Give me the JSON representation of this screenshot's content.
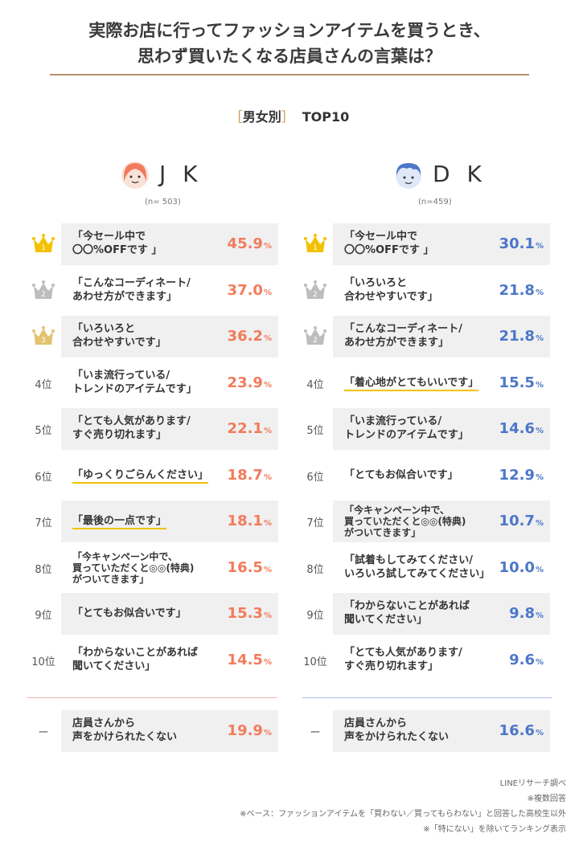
{
  "title": {
    "line1": "実際お店に行ってファッションアイテムを買うとき、",
    "line2": "思わず買いたくなる店員さんの言葉は？"
  },
  "subtitle": {
    "open": "［",
    "text": "男女別",
    "close": "］",
    "top": "TOP10"
  },
  "colors": {
    "jk": "#f27b5b",
    "dk": "#4c77c9",
    "gold": "#f2c200",
    "silver": "#bdbdbd",
    "bronze": "#e3c36f"
  },
  "chart_data": [
    {
      "type": "table",
      "group": "J K",
      "n": "(n= 503)",
      "unit": "%",
      "rows": [
        {
          "rank": "1",
          "crown": "gold",
          "label": "「今セール中で\n〇〇%OFFです 」",
          "value": 45.9,
          "value_text": "45.9"
        },
        {
          "rank": "2",
          "crown": "silver",
          "label": "「こんなコーディネート/\nあわせ方ができます」",
          "value": 37.0,
          "value_text": "37.0"
        },
        {
          "rank": "3",
          "crown": "bronze",
          "label": "「いろいろと\n合わせやすいです」",
          "value": 36.2,
          "value_text": "36.2"
        },
        {
          "rank": "4位",
          "crown": "",
          "label": "「いま流行っている/\nトレンドのアイテムです」",
          "value": 23.9,
          "value_text": "23.9"
        },
        {
          "rank": "5位",
          "crown": "",
          "label": "「とても人気があります/\nすぐ売り切れます」",
          "value": 22.1,
          "value_text": "22.1"
        },
        {
          "rank": "6位",
          "crown": "",
          "label": "「ゆっくりごらんください」",
          "underline": true,
          "value": 18.7,
          "value_text": "18.7"
        },
        {
          "rank": "7位",
          "crown": "",
          "label": "「最後の一点です」",
          "underline": true,
          "value": 18.1,
          "value_text": "18.1"
        },
        {
          "rank": "8位",
          "crown": "",
          "label": "「今キャンペーン中で、\n買っていただくと◎◎(特典)\nがついてきます」",
          "small": true,
          "value": 16.5,
          "value_text": "16.5"
        },
        {
          "rank": "9位",
          "crown": "",
          "label": "「とてもお似合いです」",
          "value": 15.3,
          "value_text": "15.3"
        },
        {
          "rank": "10位",
          "crown": "",
          "label": "「わからないことがあれば\n聞いてください」",
          "value": 14.5,
          "value_text": "14.5"
        }
      ],
      "extra": {
        "rank": "ー",
        "label": "店員さんから\n声をかけられたくない",
        "value": 19.9,
        "value_text": "19.9"
      }
    },
    {
      "type": "table",
      "group": "D K",
      "n": "(n=459)",
      "unit": "%",
      "rows": [
        {
          "rank": "1",
          "crown": "gold",
          "label": "「今セール中で\n〇〇%OFFです 」",
          "value": 30.1,
          "value_text": "30.1"
        },
        {
          "rank": "2",
          "crown": "silver",
          "label": "「いろいろと\n合わせやすいです」",
          "value": 21.8,
          "value_text": "21.8"
        },
        {
          "rank": "2",
          "crown": "silver",
          "label": "「こんなコーディネート/\nあわせ方ができます」",
          "value": 21.8,
          "value_text": "21.8"
        },
        {
          "rank": "4位",
          "crown": "",
          "label": "「着心地がとてもいいです」",
          "underline": true,
          "value": 15.5,
          "value_text": "15.5"
        },
        {
          "rank": "5位",
          "crown": "",
          "label": "「いま流行っている/\nトレンドのアイテムです」",
          "value": 14.6,
          "value_text": "14.6"
        },
        {
          "rank": "6位",
          "crown": "",
          "label": "「とてもお似合いです」",
          "value": 12.9,
          "value_text": "12.9"
        },
        {
          "rank": "7位",
          "crown": "",
          "label": "「今キャンペーン中で、\n買っていただくと◎◎(特典)\nがついてきます」",
          "small": true,
          "value": 10.7,
          "value_text": "10.7"
        },
        {
          "rank": "8位",
          "crown": "",
          "label": "「試着もしてみてください/\nいろいろ試してみてください」",
          "value": 10.0,
          "value_text": "10.0"
        },
        {
          "rank": "9位",
          "crown": "",
          "label": "「わからないことがあれば\n聞いてください」",
          "value": 9.8,
          "value_text": "9.8"
        },
        {
          "rank": "10位",
          "crown": "",
          "label": "「とても人気があります/\nすぐ売り切れます」",
          "value": 9.6,
          "value_text": "9.6"
        }
      ],
      "extra": {
        "rank": "ー",
        "label": "店員さんから\n声をかけられたくない",
        "value": 16.6,
        "value_text": "16.6"
      }
    }
  ],
  "notes": [
    "LINEリサーチ調べ",
    "※複数回答",
    "※ベース：ファッションアイテムを「買わない／買ってもらわない」と回答した高校生以外",
    "※「特にない」を除いてランキング表示"
  ]
}
